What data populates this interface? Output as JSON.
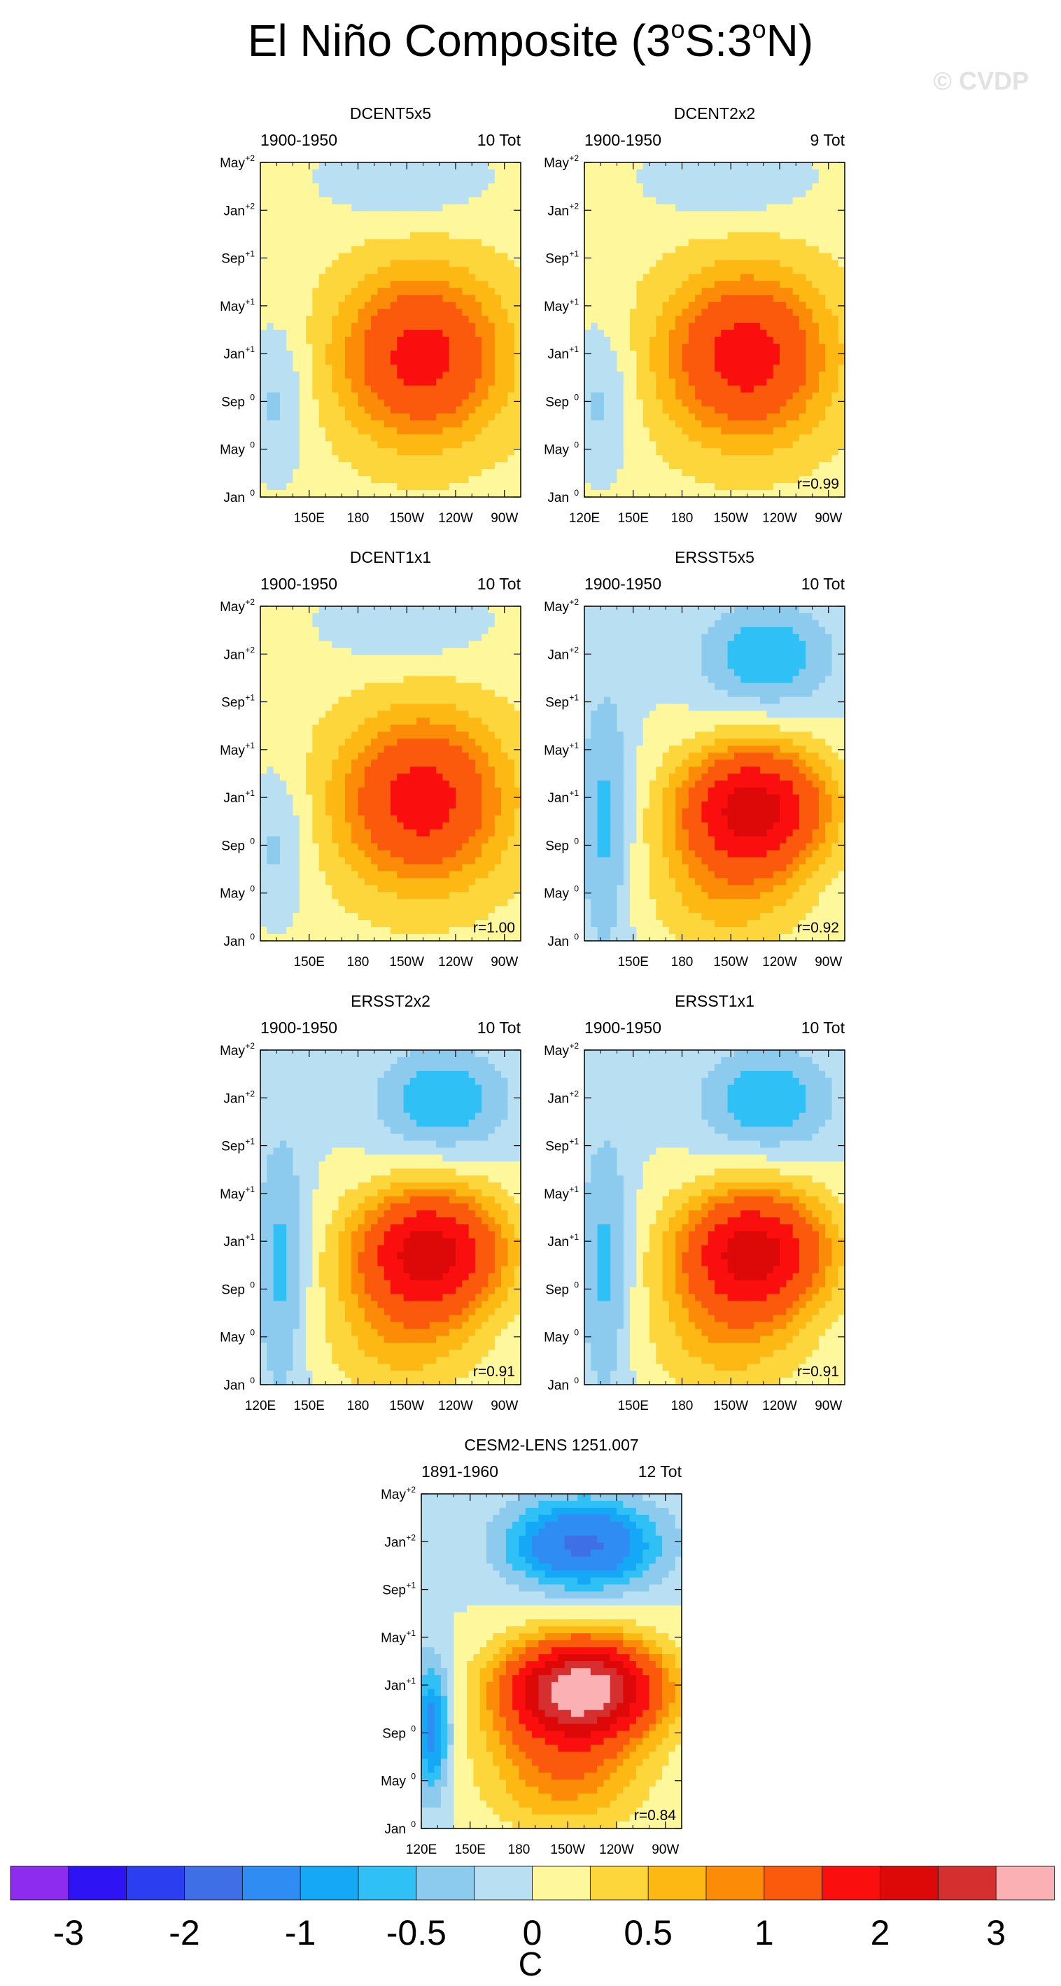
{
  "figure": {
    "title_main": "El Niño Composite (3",
    "title_s1": "o",
    "title_mid": "S:3",
    "title_s2": "o",
    "title_end": "N)",
    "watermark": "© CVDP",
    "colorbar_unit": "C"
  },
  "colors": {
    "levels": [
      "#8d2bef",
      "#2e14f5",
      "#2b3ff0",
      "#3e6fe6",
      "#2f8cf3",
      "#15a8f6",
      "#2fc0f6",
      "#8ccbee",
      "#b8dff2",
      "#fff79b",
      "#fcd63b",
      "#fdb813",
      "#fc8c08",
      "#fb5a0c",
      "#fb0e0e",
      "#dd0808",
      "#d62f2f",
      "#fbb0b4"
    ],
    "land_bg": "#ffffff"
  },
  "colorbar": {
    "labels": [
      "-3",
      "-2",
      "-1",
      "-0.5",
      "0",
      "0.5",
      "1",
      "2",
      "3"
    ]
  },
  "chart_data": [
    {
      "type": "heatmap",
      "title": "DCENT5x5",
      "period": "1900-1950",
      "count": "10 Tot",
      "correlation": "",
      "x_ticks": [
        "150E",
        "180",
        "150W",
        "120W",
        "90W"
      ],
      "y_ticks": [
        "Jan",
        "May",
        "Sep",
        "Jan",
        "May",
        "Sep",
        "Jan",
        "May"
      ],
      "y_sups": [
        "0",
        "0",
        "0",
        "+1",
        "+1",
        "+1",
        "+2",
        "+2"
      ],
      "xlim": [
        "120E",
        "80W"
      ],
      "anomaly_pattern": "warm peak ~1.5C near 150W-90W around Jan+1; weak cool west"
    },
    {
      "type": "heatmap",
      "title": "DCENT2x2",
      "period": "1900-1950",
      "count": "9 Tot",
      "correlation": "r=0.99",
      "x_ticks": [
        "120E",
        "150E",
        "180",
        "150W",
        "120W",
        "90W"
      ],
      "y_ticks": [
        "Jan",
        "May",
        "Sep",
        "Jan",
        "May",
        "Sep",
        "Jan",
        "May"
      ],
      "y_sups": [
        "0",
        "0",
        "0",
        "+1",
        "+1",
        "+1",
        "+2",
        "+2"
      ],
      "xlim": [
        "120E",
        "80W"
      ],
      "anomaly_pattern": "warm peak ~1.5C near 150W-90W around Jan+1"
    },
    {
      "type": "heatmap",
      "title": "DCENT1x1",
      "period": "1900-1950",
      "count": "10 Tot",
      "correlation": "r=1.00",
      "x_ticks": [
        "150E",
        "180",
        "150W",
        "120W",
        "90W"
      ],
      "y_ticks": [
        "Jan",
        "May",
        "Sep",
        "Jan",
        "May",
        "Sep",
        "Jan",
        "May"
      ],
      "y_sups": [
        "0",
        "0",
        "0",
        "+1",
        "+1",
        "+1",
        "+2",
        "+2"
      ],
      "xlim": [
        "120E",
        "80W"
      ],
      "anomaly_pattern": "warm peak ~1.5C near 150W-90W around Jan+1"
    },
    {
      "type": "heatmap",
      "title": "ERSST5x5",
      "period": "1900-1950",
      "count": "10 Tot",
      "correlation": "r=0.92",
      "x_ticks": [
        "150E",
        "180",
        "150W",
        "120W",
        "90W"
      ],
      "y_ticks": [
        "Jan",
        "May",
        "Sep",
        "Jan",
        "May",
        "Sep",
        "Jan",
        "May"
      ],
      "y_sups": [
        "0",
        "0",
        "0",
        "+1",
        "+1",
        "+1",
        "+2",
        "+2"
      ],
      "xlim": [
        "120E",
        "80W"
      ],
      "anomaly_pattern": "warm peak ~2C near 150W around Nov0-Jan+1; cool east in year +1"
    },
    {
      "type": "heatmap",
      "title": "ERSST2x2",
      "period": "1900-1950",
      "count": "10 Tot",
      "correlation": "r=0.91",
      "x_ticks": [
        "120E",
        "150E",
        "180",
        "150W",
        "120W",
        "90W"
      ],
      "y_ticks": [
        "Jan",
        "May",
        "Sep",
        "Jan",
        "May",
        "Sep",
        "Jan",
        "May"
      ],
      "y_sups": [
        "0",
        "0",
        "0",
        "+1",
        "+1",
        "+1",
        "+2",
        "+2"
      ],
      "xlim": [
        "120E",
        "80W"
      ],
      "anomaly_pattern": "warm peak ~2C near 150W around Nov0-Jan+1; cool east in year +1"
    },
    {
      "type": "heatmap",
      "title": "ERSST1x1",
      "period": "1900-1950",
      "count": "10 Tot",
      "correlation": "r=0.91",
      "x_ticks": [
        "150E",
        "180",
        "150W",
        "120W",
        "90W"
      ],
      "y_ticks": [
        "Jan",
        "May",
        "Sep",
        "Jan",
        "May",
        "Sep",
        "Jan",
        "May"
      ],
      "y_sups": [
        "0",
        "0",
        "0",
        "+1",
        "+1",
        "+1",
        "+2",
        "+2"
      ],
      "xlim": [
        "120E",
        "80W"
      ],
      "anomaly_pattern": "warm peak ~2C near 150W around Nov0-Jan+1; cool east in year +1"
    },
    {
      "type": "heatmap",
      "title": "CESM2-LENS 1251.007",
      "period": "1891-1960",
      "count": "12 Tot",
      "correlation": "r=0.84",
      "x_ticks": [
        "120E",
        "150E",
        "180",
        "150W",
        "120W",
        "90W"
      ],
      "y_ticks": [
        "Jan",
        "May",
        "Sep",
        "Jan",
        "May",
        "Sep",
        "Jan",
        "May"
      ],
      "y_sups": [
        "0",
        "0",
        "0",
        "+1",
        "+1",
        "+1",
        "+2",
        "+2"
      ],
      "xlim": [
        "120E",
        "80W"
      ],
      "anomaly_pattern": "strong warm peak >3C near 160W at Jan+1; strong cooling ~-1C in year +1 to +2"
    }
  ]
}
